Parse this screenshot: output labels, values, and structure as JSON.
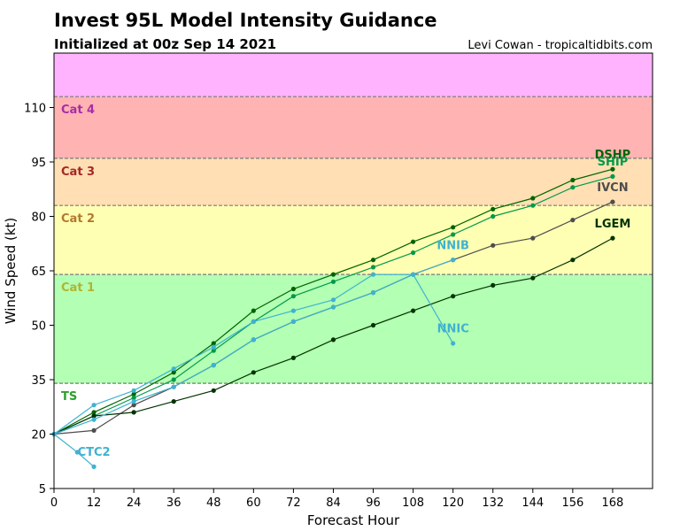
{
  "chart_data": {
    "type": "line",
    "title": "Invest 95L Model Intensity Guidance",
    "subtitle": "Initialized at 00z Sep 14 2021",
    "credit": "Levi Cowan - tropicaltidbits.com",
    "xlabel": "Forecast Hour",
    "ylabel": "Wind Speed (kt)",
    "xlim": [
      0,
      180
    ],
    "ylim": [
      5,
      125
    ],
    "xticks": [
      0,
      12,
      24,
      36,
      48,
      60,
      72,
      84,
      96,
      108,
      120,
      132,
      144,
      156,
      168
    ],
    "yticks": [
      5,
      20,
      35,
      50,
      65,
      80,
      95,
      110
    ],
    "bands": [
      {
        "label": "TS",
        "from": 34,
        "to": 64,
        "color": "#b3ffb3",
        "label_color": "#2ca02c"
      },
      {
        "label": "Cat 1",
        "from": 64,
        "to": 83,
        "color": "#ffffb3",
        "label_color": "#b3b32d"
      },
      {
        "label": "Cat 2",
        "from": 83,
        "to": 96,
        "color": "#ffdfb3",
        "label_color": "#b37a2d"
      },
      {
        "label": "Cat 3",
        "from": 96,
        "to": 113,
        "color": "#ffb3b3",
        "label_color": "#a62626"
      },
      {
        "label": "Cat 4",
        "from": 113,
        "to": 125,
        "color": "#ffb3ff",
        "label_color": "#a62da6"
      }
    ],
    "series": [
      {
        "name": "DSHP",
        "color": "#006400",
        "label_color": "#006400",
        "label_pos": [
          168,
          96
        ],
        "x": [
          0,
          12,
          24,
          36,
          48,
          60,
          72,
          84,
          96,
          108,
          120,
          132,
          144,
          156,
          168
        ],
        "y": [
          20,
          26,
          31,
          37,
          45,
          54,
          60,
          64,
          68,
          73,
          77,
          82,
          85,
          90,
          93
        ]
      },
      {
        "name": "SHIP",
        "color": "#009a4a",
        "label_color": "#009a4a",
        "label_pos": [
          168,
          94
        ],
        "x": [
          0,
          12,
          24,
          36,
          48,
          60,
          72,
          84,
          96,
          108,
          120,
          132,
          144,
          156,
          168
        ],
        "y": [
          20,
          25,
          30,
          35,
          43,
          51,
          58,
          62,
          66,
          70,
          75,
          80,
          83,
          88,
          91
        ]
      },
      {
        "name": "IVCN",
        "color": "#4d4d4d",
        "label_color": "#4d4d4d",
        "label_pos": [
          168,
          87
        ],
        "x": [
          0,
          12,
          24,
          36,
          48,
          60,
          72,
          84,
          96,
          108,
          120,
          132,
          144,
          156,
          168
        ],
        "y": [
          20,
          21,
          28,
          33,
          39,
          46,
          51,
          55,
          59,
          64,
          68,
          72,
          74,
          79,
          84
        ]
      },
      {
        "name": "LGEM",
        "color": "#003300",
        "label_color": "#003300",
        "label_pos": [
          168,
          77
        ],
        "x": [
          0,
          12,
          24,
          36,
          48,
          60,
          72,
          84,
          96,
          108,
          120,
          132,
          144,
          156,
          168
        ],
        "y": [
          20,
          25,
          26,
          29,
          32,
          37,
          41,
          46,
          50,
          54,
          58,
          61,
          63,
          68,
          74
        ]
      },
      {
        "name": "NNIB",
        "color": "#3fb2d1",
        "label_color": "#3fb2d1",
        "label_pos": [
          120,
          71
        ],
        "x": [
          0,
          12,
          24,
          36,
          48,
          60,
          72,
          84,
          96,
          108,
          120
        ],
        "y": [
          20,
          24,
          29,
          33,
          39,
          46,
          51,
          55,
          59,
          64,
          68
        ]
      },
      {
        "name": "NNIC",
        "color": "#3fb2d1",
        "label_color": "#3fb2d1",
        "label_pos": [
          120,
          48
        ],
        "x": [
          0,
          12,
          24,
          36,
          48,
          60,
          72,
          84,
          96,
          108,
          120
        ],
        "y": [
          20,
          28,
          32,
          38,
          44,
          51,
          54,
          57,
          64,
          64,
          45
        ]
      },
      {
        "name": "CTC2",
        "color": "#3fb2d1",
        "label_color": "#3fb2d1",
        "label_pos": [
          12,
          14
        ],
        "x": [
          0,
          7,
          12
        ],
        "y": [
          20,
          15,
          11
        ]
      }
    ]
  }
}
